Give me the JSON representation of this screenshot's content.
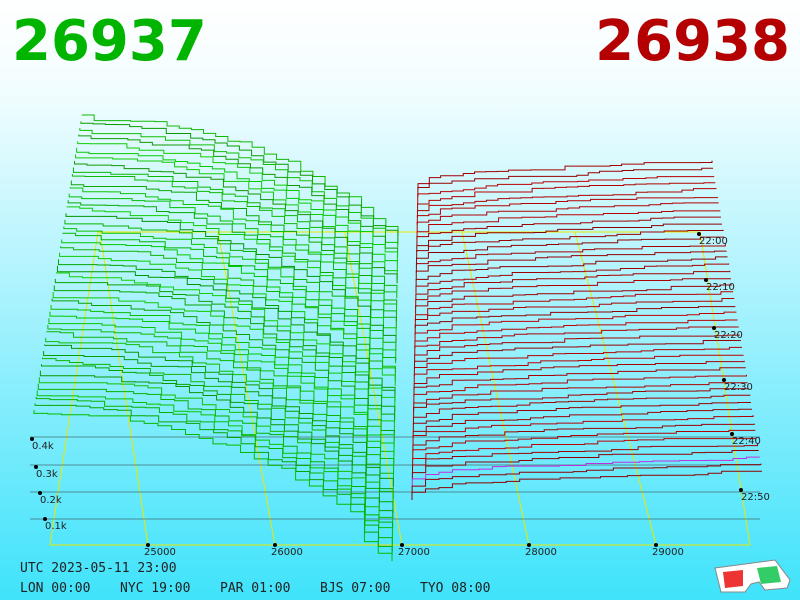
{
  "header": {
    "bid": "26937",
    "ask": "26938"
  },
  "price_labels": [
    "25000",
    "26000",
    "27000",
    "28000",
    "29000"
  ],
  "depth_labels": [
    "0.1k",
    "0.2k",
    "0.3k",
    "0.4k"
  ],
  "time_labels": [
    "22:00",
    "22:10",
    "22:20",
    "22:30",
    "22:40",
    "22:50"
  ],
  "footer": {
    "utc": "UTC 2023-05-11 23:00",
    "clocks": [
      "LON 00:00",
      "NYC 19:00",
      "PAR 01:00",
      "BJS 07:00",
      "TYO 08:00"
    ]
  }
}
